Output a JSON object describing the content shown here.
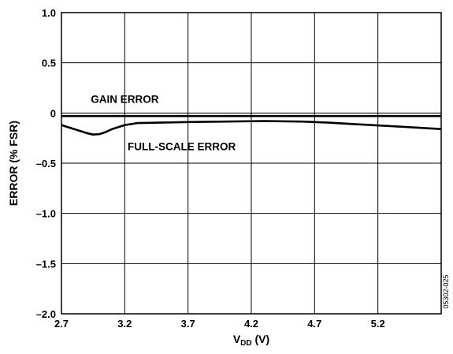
{
  "chart_data": {
    "type": "line",
    "title": "",
    "xlabel_main": "V",
    "xlabel_sub": "DD",
    "xlabel_unit": " (V)",
    "ylabel": "ERROR (% FSR)",
    "xlim": [
      2.7,
      5.7
    ],
    "ylim": [
      -2.0,
      1.0
    ],
    "x_ticks": [
      2.7,
      3.2,
      3.7,
      4.2,
      4.7,
      5.2
    ],
    "x_tick_labels": [
      "2.7",
      "3.2",
      "3.7",
      "4.2",
      "4.7",
      "5.2"
    ],
    "y_ticks": [
      1.0,
      0.5,
      0,
      -0.5,
      -1.0,
      -1.5,
      -2.0
    ],
    "y_tick_labels": [
      "1.0",
      "0.5",
      "0",
      "–0.5",
      "–1.0",
      "–1.5",
      "–2.0"
    ],
    "grid": true,
    "series": [
      {
        "name": "GAIN ERROR",
        "color": "#000000",
        "x": [
          2.7,
          3.0,
          3.5,
          4.0,
          4.5,
          5.0,
          5.5,
          5.7
        ],
        "y": [
          -0.03,
          -0.03,
          -0.03,
          -0.03,
          -0.03,
          -0.03,
          -0.03,
          -0.03
        ]
      },
      {
        "name": "FULL-SCALE ERROR",
        "color": "#000000",
        "x": [
          2.7,
          2.8,
          2.9,
          2.95,
          3.0,
          3.05,
          3.1,
          3.2,
          3.3,
          3.5,
          3.7,
          4.0,
          4.3,
          4.6,
          4.8,
          5.0,
          5.3,
          5.5,
          5.7
        ],
        "y": [
          -0.12,
          -0.16,
          -0.2,
          -0.215,
          -0.21,
          -0.19,
          -0.16,
          -0.12,
          -0.1,
          -0.095,
          -0.09,
          -0.085,
          -0.08,
          -0.085,
          -0.095,
          -0.11,
          -0.13,
          -0.145,
          -0.16
        ]
      }
    ],
    "annotations": [
      {
        "text": "GAIN ERROR",
        "x": 3.2,
        "y": 0.1
      },
      {
        "text": "FULL-SCALE ERROR",
        "x": 3.65,
        "y": -0.37
      }
    ],
    "figure_code": "05302-025"
  }
}
